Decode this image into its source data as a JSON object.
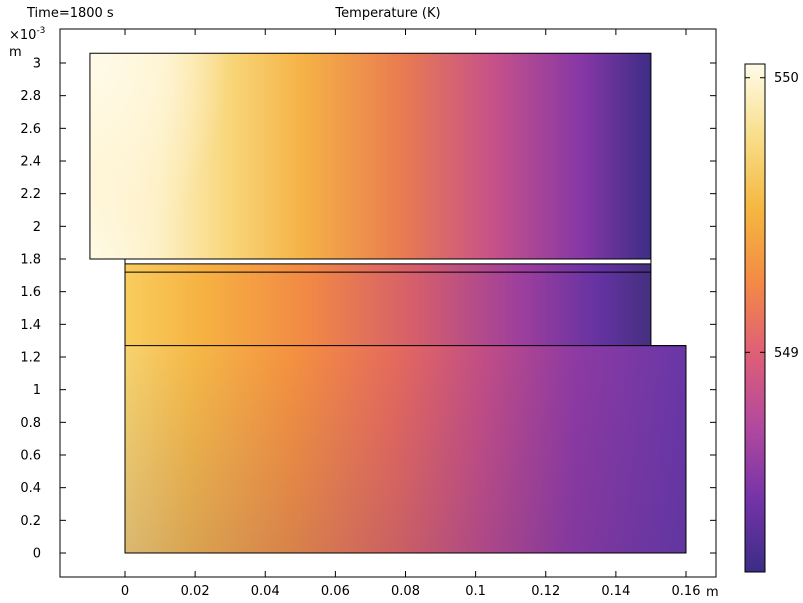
{
  "header": {
    "time_label": "Time=1800 s",
    "title": "Temperature (K)"
  },
  "chart_data": {
    "type": "heatmap",
    "title": "Temperature (K)",
    "subtitle": "Time=1800 s",
    "x_unit": "m",
    "y_unit": "m",
    "y_multiplier_label": "×10",
    "y_multiplier_exponent": "-3",
    "x_ticks": [
      0,
      0.02,
      0.04,
      0.06,
      0.08,
      0.1,
      0.12,
      0.14,
      0.16
    ],
    "x_tick_labels": [
      "0",
      "0.02",
      "0.04",
      "0.06",
      "0.08",
      "0.1",
      "0.12",
      "0.14",
      "0.16"
    ],
    "y_ticks": [
      0,
      0.2,
      0.4,
      0.6,
      0.8,
      1,
      1.2,
      1.4,
      1.6,
      1.8,
      2,
      2.2,
      2.4,
      2.6,
      2.8,
      3
    ],
    "y_tick_labels": [
      "0",
      "0.2",
      "0.4",
      "0.6",
      "0.8",
      "1",
      "1.2",
      "1.4",
      "1.6",
      "1.8",
      "2",
      "2.2",
      "2.4",
      "2.6",
      "2.8",
      "3"
    ],
    "xlim": [
      -0.018,
      0.168
    ],
    "ylim": [
      -0.15,
      3.25
    ],
    "grid": false,
    "colorbar": {
      "position": "right",
      "range": [
        548.2,
        550.05
      ],
      "ticks": [
        549,
        550
      ],
      "tick_labels": [
        "549",
        "550"
      ],
      "colors": [
        "#3b2d85",
        "#7433a8",
        "#b2499e",
        "#df5e77",
        "#f48a45",
        "#f5b73f",
        "#f8de8a",
        "#fffbe8"
      ]
    },
    "domains": [
      {
        "name": "upper",
        "x": [
          -0.01,
          0.15
        ],
        "y": [
          1.8,
          3.06
        ]
      },
      {
        "name": "step",
        "x": [
          -0.01,
          0
        ],
        "y": [
          1.8,
          1.8
        ]
      },
      {
        "name": "thin-layer-1",
        "x": [
          0,
          0.15
        ],
        "y": [
          1.72,
          1.77
        ]
      },
      {
        "name": "middle",
        "x": [
          0,
          0.15
        ],
        "y": [
          1.27,
          1.72
        ]
      },
      {
        "name": "bottom",
        "x": [
          0,
          0.16
        ],
        "y": [
          0,
          1.27
        ]
      }
    ]
  }
}
